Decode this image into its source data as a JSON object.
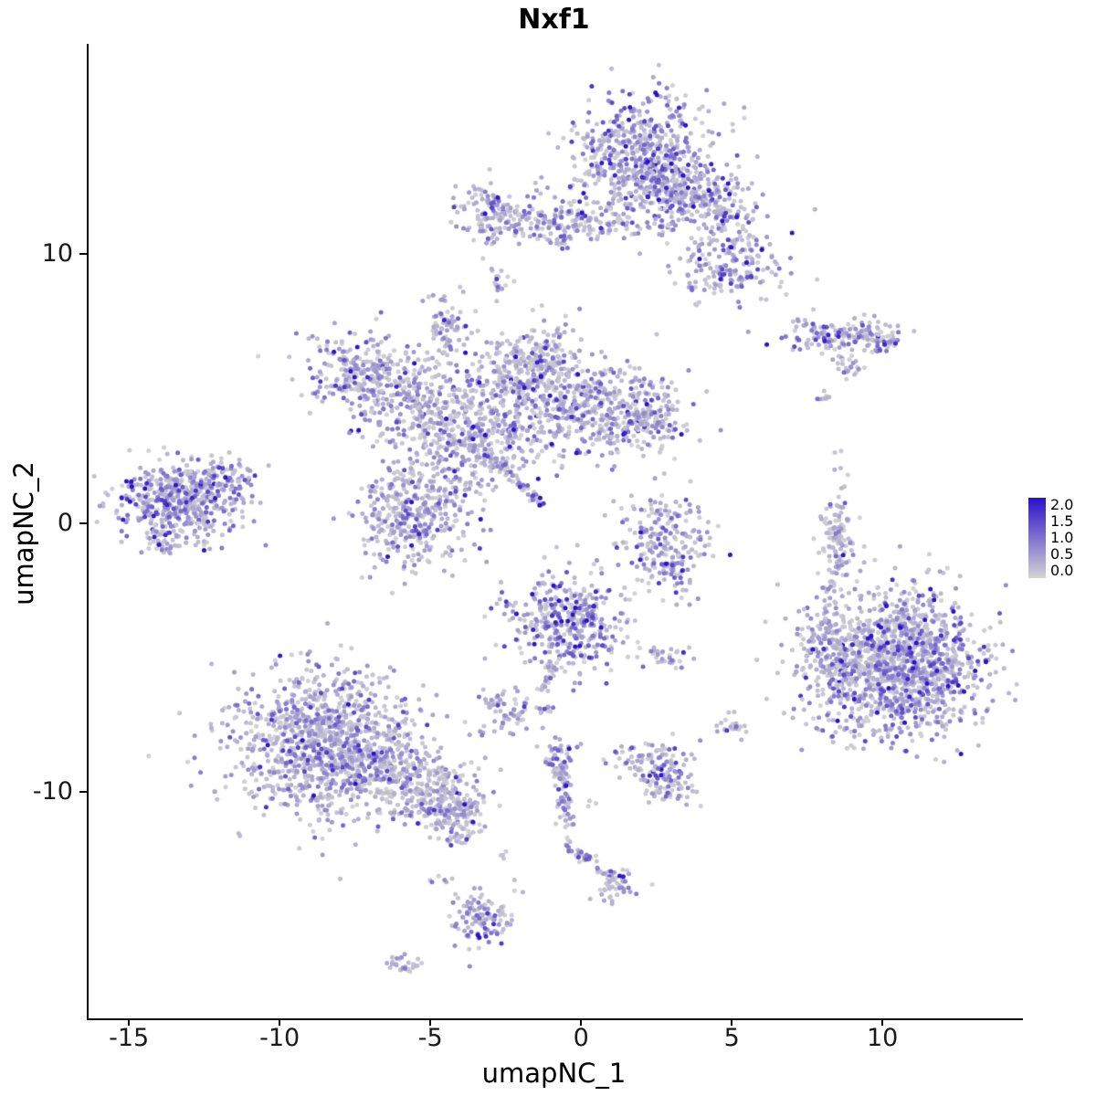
{
  "chart_data": {
    "type": "scatter",
    "title": "Nxf1",
    "xlabel": "umapNC_1",
    "ylabel": "umapNC_2",
    "xlim": [
      -16.4,
      14.6
    ],
    "ylim": [
      -18.4,
      17.8
    ],
    "grid": false,
    "x_ticks": [
      {
        "value": -15,
        "label": "-15"
      },
      {
        "value": -10,
        "label": "-10"
      },
      {
        "value": -5,
        "label": "-5"
      },
      {
        "value": 0,
        "label": "0"
      },
      {
        "value": 5,
        "label": "5"
      },
      {
        "value": 10,
        "label": "10"
      }
    ],
    "y_ticks": [
      {
        "value": 10,
        "label": "10"
      },
      {
        "value": 0,
        "label": "0"
      },
      {
        "value": -10,
        "label": "-10"
      }
    ],
    "legend": {
      "position": "right",
      "ticks": [
        "2.0",
        "1.5",
        "1.0",
        "0.5",
        "0.0"
      ],
      "vmax": 2.0,
      "low_color": "#d3d3d3",
      "high_color": "#2b11c9"
    },
    "point_radius_px": 2.5,
    "clusters": [
      {
        "cx": 2.0,
        "cy": 13.6,
        "sx": 1.15,
        "sy": 1.2,
        "n": 650,
        "e": 0.6
      },
      {
        "cx": 4.0,
        "cy": 12.1,
        "sx": 1.05,
        "sy": 0.55,
        "n": 260,
        "e": 0.55,
        "rot": -18
      },
      {
        "cx": 5.0,
        "cy": 9.6,
        "sx": 0.85,
        "sy": 0.7,
        "n": 190,
        "e": 0.65
      },
      {
        "cx": -2.9,
        "cy": 11.55,
        "sx": 0.55,
        "sy": 0.6,
        "n": 110,
        "e": 0.5
      },
      {
        "cx": -0.4,
        "cy": 11.2,
        "sx": 1.5,
        "sy": 0.42,
        "n": 220,
        "e": 0.45
      },
      {
        "cx": -2.8,
        "cy": 8.7,
        "sx": 0.18,
        "sy": 0.3,
        "n": 18,
        "e": 0.45
      },
      {
        "cx": -4.5,
        "cy": 7.3,
        "sx": 0.28,
        "sy": 0.5,
        "n": 70,
        "e": 0.55
      },
      {
        "cx": -7.3,
        "cy": 5.5,
        "sx": 0.95,
        "sy": 0.85,
        "n": 280,
        "e": 0.55
      },
      {
        "cx": -5.3,
        "cy": 4.5,
        "sx": 0.85,
        "sy": 0.8,
        "n": 220,
        "e": 0.45
      },
      {
        "cx": -2.0,
        "cy": 4.8,
        "sx": 1.25,
        "sy": 1.1,
        "n": 480,
        "e": 0.5
      },
      {
        "cx": -1.3,
        "cy": 6.2,
        "sx": 0.5,
        "sy": 0.5,
        "n": 90,
        "e": 0.5
      },
      {
        "cx": 0.8,
        "cy": 4.15,
        "sx": 1.25,
        "sy": 0.85,
        "n": 380,
        "e": 0.55
      },
      {
        "cx": 2.4,
        "cy": 3.85,
        "sx": 0.55,
        "sy": 0.45,
        "n": 90,
        "e": 0.5
      },
      {
        "cx": -3.7,
        "cy": 2.9,
        "sx": 0.9,
        "sy": 0.85,
        "n": 260,
        "e": 0.5
      },
      {
        "cx": -5.6,
        "cy": 0.3,
        "sx": 0.95,
        "sy": 0.95,
        "n": 380,
        "e": 0.5
      },
      {
        "line": {
          "x1": -3.1,
          "y1": 2.5,
          "x2": -1.35,
          "y2": 0.8,
          "j": 0.1
        },
        "n": 55,
        "e": 0.6
      },
      {
        "cx": -1.28,
        "cy": 0.72,
        "sx": 0.06,
        "sy": 0.06,
        "n": 4,
        "e": 1.9
      },
      {
        "cx": -13.3,
        "cy": 0.85,
        "sx": 1.0,
        "sy": 0.7,
        "n": 480,
        "e": 0.6
      },
      {
        "cx": -11.75,
        "cy": 1.7,
        "sx": 0.5,
        "sy": 0.35,
        "n": 70,
        "e": 0.6
      },
      {
        "cx": -13.8,
        "cy": -0.6,
        "sx": 0.5,
        "sy": 0.3,
        "n": 45,
        "e": 0.55
      },
      {
        "cx": 8.6,
        "cy": 6.95,
        "sx": 1.05,
        "sy": 0.32,
        "n": 150,
        "e": 0.6
      },
      {
        "cx": 9.9,
        "cy": 6.7,
        "sx": 0.3,
        "sy": 0.22,
        "n": 30,
        "e": 0.7
      },
      {
        "cx": 8.85,
        "cy": 5.75,
        "sx": 0.3,
        "sy": 0.25,
        "n": 22,
        "e": 0.4
      },
      {
        "cx": 8.0,
        "cy": 4.65,
        "sx": 0.22,
        "sy": 0.15,
        "n": 8,
        "e": 0.3
      },
      {
        "cx": 2.7,
        "cy": -0.7,
        "sx": 0.75,
        "sy": 0.95,
        "n": 210,
        "e": 0.5
      },
      {
        "cx": 2.95,
        "cy": -1.6,
        "sx": 0.4,
        "sy": 0.3,
        "n": 30,
        "e": 0.9
      },
      {
        "cx": 8.5,
        "cy": -0.9,
        "sx": 0.3,
        "sy": 1.15,
        "n": 130,
        "e": 0.3
      },
      {
        "cx": 10.6,
        "cy": -5.25,
        "sx": 1.4,
        "sy": 1.35,
        "n": 1300,
        "e": 0.55
      },
      {
        "cx": 8.35,
        "cy": -4.75,
        "sx": 0.55,
        "sy": 0.8,
        "n": 180,
        "e": 0.45
      },
      {
        "cx": -0.4,
        "cy": -3.65,
        "sx": 1.0,
        "sy": 0.85,
        "n": 380,
        "e": 0.65
      },
      {
        "line": {
          "x1": -0.8,
          "y1": -4.9,
          "x2": -1.3,
          "y2": -6.2,
          "j": 0.09
        },
        "n": 30,
        "e": 0.6
      },
      {
        "cx": -2.6,
        "cy": -7.05,
        "sx": 0.5,
        "sy": 0.4,
        "n": 70,
        "e": 0.6
      },
      {
        "cx": -1.1,
        "cy": -6.9,
        "sx": 0.15,
        "sy": 0.12,
        "n": 10,
        "e": 0.7
      },
      {
        "cx": 2.9,
        "cy": -4.95,
        "sx": 0.45,
        "sy": 0.25,
        "n": 28,
        "e": 0.45
      },
      {
        "cx": -8.3,
        "cy": -8.3,
        "sx": 1.5,
        "sy": 1.35,
        "n": 1150,
        "e": 0.5
      },
      {
        "cx": -5.4,
        "cy": -9.8,
        "sx": 0.95,
        "sy": 0.6,
        "n": 260,
        "e": 0.45,
        "rot": -20
      },
      {
        "cx": -4.3,
        "cy": -10.6,
        "sx": 0.55,
        "sy": 0.45,
        "n": 130,
        "e": 0.5
      },
      {
        "cx": -3.9,
        "cy": -11.6,
        "sx": 0.3,
        "sy": 0.25,
        "n": 30,
        "e": 0.5
      },
      {
        "cx": 5.0,
        "cy": -7.6,
        "sx": 0.28,
        "sy": 0.25,
        "n": 22,
        "e": 0.5
      },
      {
        "cx": 2.4,
        "cy": -8.9,
        "sx": 0.65,
        "sy": 0.4,
        "n": 100,
        "e": 0.5
      },
      {
        "cx": 2.9,
        "cy": -9.75,
        "sx": 0.45,
        "sy": 0.35,
        "n": 60,
        "e": 0.55
      },
      {
        "cx": -0.75,
        "cy": -8.55,
        "sx": 0.3,
        "sy": 0.3,
        "n": 40,
        "e": 0.6
      },
      {
        "line": {
          "x1": -0.7,
          "y1": -8.8,
          "x2": -0.45,
          "y2": -11.2,
          "j": 0.13
        },
        "n": 70,
        "e": 0.55
      },
      {
        "cx": -0.45,
        "cy": -11.9,
        "sx": 0.12,
        "sy": 0.15,
        "n": 8,
        "e": 0.5
      },
      {
        "line": {
          "x1": -0.3,
          "y1": -12.1,
          "x2": 1.2,
          "y2": -13.3,
          "j": 0.11
        },
        "n": 40,
        "e": 0.5
      },
      {
        "cx": 1.3,
        "cy": -13.5,
        "sx": 0.35,
        "sy": 0.3,
        "n": 45,
        "e": 0.55
      },
      {
        "cx": -3.4,
        "cy": -14.7,
        "sx": 0.5,
        "sy": 0.55,
        "n": 110,
        "e": 0.6
      },
      {
        "cx": -5.9,
        "cy": -16.45,
        "sx": 0.35,
        "sy": 0.18,
        "n": 28,
        "e": 0.35
      },
      {
        "cx": -4.6,
        "cy": -13.3,
        "sx": 0.2,
        "sy": 0.15,
        "n": 6,
        "e": 0.4
      },
      {
        "cx": -2.6,
        "cy": -12.4,
        "sx": 0.15,
        "sy": 0.12,
        "n": 4,
        "e": 0.3
      },
      {
        "cx": -10.6,
        "cy": 6.2,
        "sx": 0.05,
        "sy": 0.05,
        "n": 1,
        "e": 0.0
      },
      {
        "cx": 0.3,
        "cy": -10.4,
        "sx": 0.1,
        "sy": 0.1,
        "n": 3,
        "e": 0.4
      }
    ]
  }
}
